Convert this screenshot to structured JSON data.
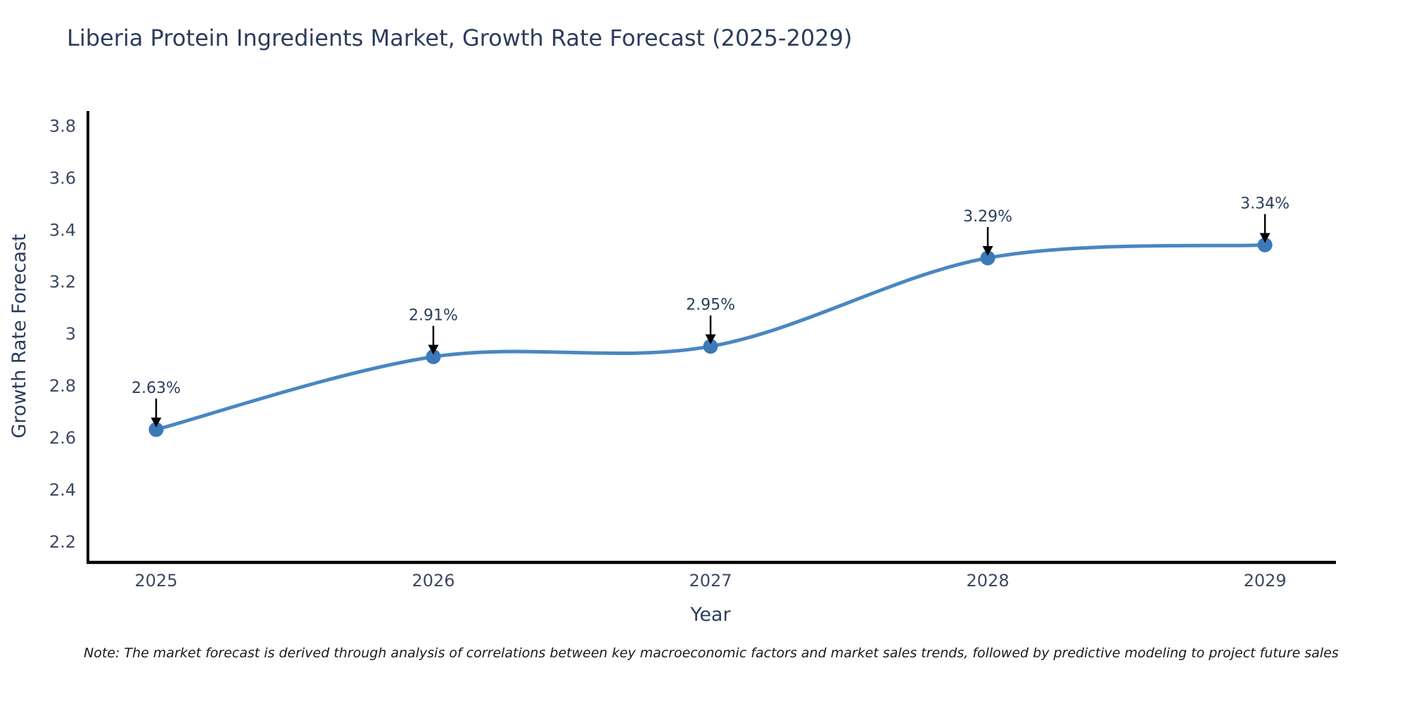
{
  "chart": {
    "title": "Liberia Protein Ingredients Market, Growth Rate Forecast (2025-2029)",
    "note": "Note: The market forecast is derived through analysis of correlations between key macroeconomic factors and market sales trends, followed by predictive modeling to project future sales"
  },
  "chart_data": {
    "type": "line",
    "title": "Liberia Protein Ingredients Market, Growth Rate Forecast (2025-2029)",
    "xlabel": "Year",
    "ylabel": "Growth Rate Forecast",
    "x": [
      2025,
      2026,
      2027,
      2028,
      2029
    ],
    "y": [
      2.63,
      2.91,
      2.95,
      3.29,
      3.34
    ],
    "point_labels": [
      "2.63%",
      "2.91%",
      "2.95%",
      "3.29%",
      "3.34%"
    ],
    "xtick_labels": [
      "2025",
      "2026",
      "2027",
      "2028",
      "2029"
    ],
    "ytick_values": [
      2.2,
      2.4,
      2.6,
      2.8,
      3,
      3.2,
      3.4,
      3.6,
      3.8
    ],
    "ytick_labels": [
      "2.2",
      "2.4",
      "2.6",
      "2.8",
      "3",
      "3.2",
      "3.4",
      "3.6",
      "3.8"
    ],
    "xlim": [
      2024.754,
      2029.256
    ],
    "ylim": [
      2.119,
      3.855
    ],
    "grid": false,
    "legend": false,
    "line_shape": "spline",
    "colors": {
      "line": "#4a86c2",
      "marker": "#3b79b8",
      "axis": "#000000",
      "tick_text": "#3c4a62",
      "annotation_text": "#2b3d5c",
      "arrow": "#000000",
      "title_text": "#2b3d5c",
      "background": "#ffffff"
    }
  }
}
